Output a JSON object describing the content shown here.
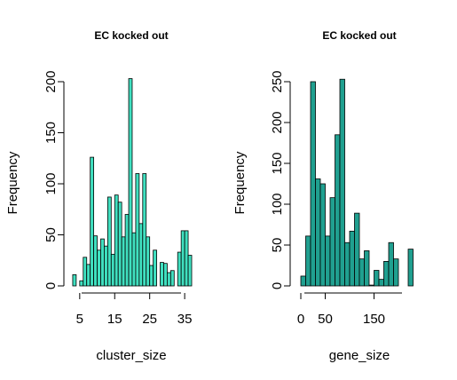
{
  "chart_data": [
    {
      "type": "bar",
      "title": "EC kocked out",
      "xlabel": "cluster_size",
      "ylabel": "Frequency",
      "bar_color": "#40E0C0",
      "bar_edge_color": "#000000",
      "xlim": [
        2,
        37
      ],
      "ylim": [
        0,
        200
      ],
      "x_ticks": [
        5,
        15,
        25,
        35
      ],
      "y_ticks": [
        0,
        50,
        100,
        150,
        200
      ],
      "bins": [
        {
          "x0": 3,
          "x1": 4,
          "count": 11
        },
        {
          "x0": 4,
          "x1": 5,
          "count": 0
        },
        {
          "x0": 5,
          "x1": 6,
          "count": 5
        },
        {
          "x0": 6,
          "x1": 7,
          "count": 28
        },
        {
          "x0": 7,
          "x1": 8,
          "count": 21
        },
        {
          "x0": 8,
          "x1": 9,
          "count": 126
        },
        {
          "x0": 9,
          "x1": 10,
          "count": 49
        },
        {
          "x0": 10,
          "x1": 11,
          "count": 35
        },
        {
          "x0": 11,
          "x1": 12,
          "count": 46
        },
        {
          "x0": 12,
          "x1": 13,
          "count": 39
        },
        {
          "x0": 13,
          "x1": 14,
          "count": 87
        },
        {
          "x0": 14,
          "x1": 15,
          "count": 31
        },
        {
          "x0": 15,
          "x1": 16,
          "count": 89
        },
        {
          "x0": 16,
          "x1": 17,
          "count": 82
        },
        {
          "x0": 17,
          "x1": 18,
          "count": 48
        },
        {
          "x0": 18,
          "x1": 19,
          "count": 70
        },
        {
          "x0": 19,
          "x1": 20,
          "count": 203
        },
        {
          "x0": 20,
          "x1": 21,
          "count": 52
        },
        {
          "x0": 21,
          "x1": 22,
          "count": 110
        },
        {
          "x0": 22,
          "x1": 23,
          "count": 61
        },
        {
          "x0": 23,
          "x1": 24,
          "count": 110
        },
        {
          "x0": 24,
          "x1": 25,
          "count": 48
        },
        {
          "x0": 25,
          "x1": 26,
          "count": 20
        },
        {
          "x0": 26,
          "x1": 27,
          "count": 35
        },
        {
          "x0": 27,
          "x1": 28,
          "count": 0
        },
        {
          "x0": 28,
          "x1": 29,
          "count": 23
        },
        {
          "x0": 29,
          "x1": 30,
          "count": 22
        },
        {
          "x0": 30,
          "x1": 31,
          "count": 13
        },
        {
          "x0": 31,
          "x1": 32,
          "count": 15
        },
        {
          "x0": 32,
          "x1": 33,
          "count": 0
        },
        {
          "x0": 33,
          "x1": 34,
          "count": 33
        },
        {
          "x0": 34,
          "x1": 35,
          "count": 54
        },
        {
          "x0": 35,
          "x1": 36,
          "count": 54
        },
        {
          "x0": 36,
          "x1": 37,
          "count": 30
        }
      ]
    },
    {
      "type": "bar",
      "title": "EC kocked out",
      "xlabel": "gene_size",
      "ylabel": "Frequency",
      "bar_color": "#20A090",
      "bar_edge_color": "#000000",
      "xlim": [
        0,
        240
      ],
      "ylim": [
        0,
        250
      ],
      "x_ticks": [
        0,
        50,
        150
      ],
      "y_ticks": [
        0,
        50,
        100,
        150,
        200,
        250
      ],
      "bins": [
        {
          "x0": 0,
          "x1": 10,
          "count": 12
        },
        {
          "x0": 10,
          "x1": 20,
          "count": 61
        },
        {
          "x0": 20,
          "x1": 30,
          "count": 250
        },
        {
          "x0": 30,
          "x1": 40,
          "count": 131
        },
        {
          "x0": 40,
          "x1": 50,
          "count": 125
        },
        {
          "x0": 50,
          "x1": 60,
          "count": 61
        },
        {
          "x0": 60,
          "x1": 70,
          "count": 108
        },
        {
          "x0": 70,
          "x1": 80,
          "count": 185
        },
        {
          "x0": 80,
          "x1": 90,
          "count": 253
        },
        {
          "x0": 90,
          "x1": 100,
          "count": 53
        },
        {
          "x0": 100,
          "x1": 110,
          "count": 67
        },
        {
          "x0": 110,
          "x1": 120,
          "count": 89
        },
        {
          "x0": 120,
          "x1": 130,
          "count": 33
        },
        {
          "x0": 130,
          "x1": 140,
          "count": 43
        },
        {
          "x0": 140,
          "x1": 150,
          "count": 1
        },
        {
          "x0": 150,
          "x1": 160,
          "count": 19
        },
        {
          "x0": 160,
          "x1": 170,
          "count": 8
        },
        {
          "x0": 170,
          "x1": 180,
          "count": 30
        },
        {
          "x0": 180,
          "x1": 190,
          "count": 53
        },
        {
          "x0": 190,
          "x1": 200,
          "count": 33
        },
        {
          "x0": 200,
          "x1": 210,
          "count": 0
        },
        {
          "x0": 210,
          "x1": 220,
          "count": 0
        },
        {
          "x0": 220,
          "x1": 230,
          "count": 45
        }
      ]
    }
  ]
}
